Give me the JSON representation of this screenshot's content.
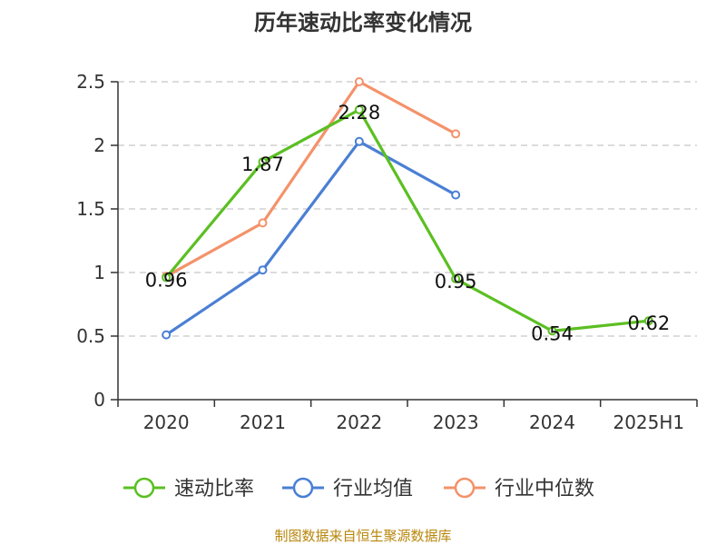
{
  "chart_data": {
    "type": "line",
    "title": "历年速动比率变化情况",
    "categories": [
      "2020",
      "2021",
      "2022",
      "2023",
      "2024",
      "2025H1"
    ],
    "y_ticks": [
      "0",
      "0.5",
      "1",
      "1.5",
      "2",
      "2.5"
    ],
    "ylim": [
      0,
      2.5
    ],
    "grid": true,
    "legend_position": "bottom",
    "series": [
      {
        "name": "速动比率",
        "color": "#5bbf22",
        "values": [
          0.96,
          1.87,
          2.28,
          0.95,
          0.54,
          0.62
        ],
        "labels": [
          "0.96",
          "1.87",
          "2.28",
          "0.95",
          "0.54",
          "0.62"
        ]
      },
      {
        "name": "行业均值",
        "color": "#4a7fd4",
        "values": [
          0.51,
          1.02,
          2.03,
          1.61,
          null,
          null
        ]
      },
      {
        "name": "行业中位数",
        "color": "#f4926a",
        "values": [
          0.97,
          1.39,
          2.5,
          2.09,
          null,
          null
        ]
      }
    ],
    "source": "制图数据来自恒生聚源数据库"
  }
}
